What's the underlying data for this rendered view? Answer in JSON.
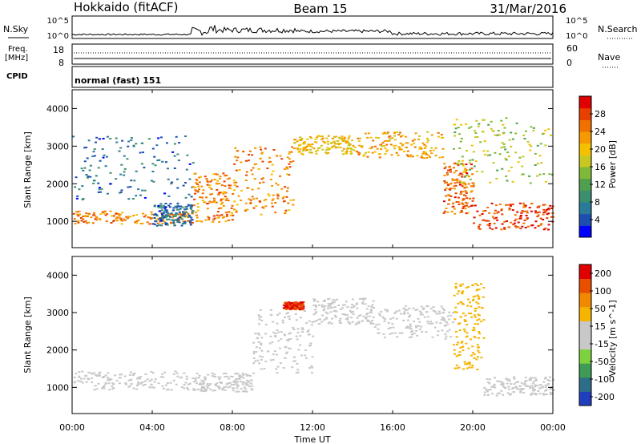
{
  "header": {
    "station": "Hokkaido (fitACF)",
    "beam": "Beam 15",
    "date": "31/Mar/2016"
  },
  "noise_panel": {
    "left_label": "N.Sky",
    "right_label": "N.Search",
    "left_ticks": [
      "10^5",
      "10^0"
    ],
    "right_ticks": [
      "10^5",
      "10^0"
    ]
  },
  "freq_panel": {
    "left_label_1": "Freq.",
    "left_label_2": "[MHz]",
    "left_ticks": [
      "18",
      "8"
    ],
    "right_label": "Nave",
    "right_ticks": [
      "60",
      "0"
    ]
  },
  "cpid_panel": {
    "label": "CPID",
    "mode": "normal (fast) 151"
  },
  "time_axis": {
    "label": "Time UT",
    "ticks": [
      "00:00",
      "04:00",
      "08:00",
      "12:00",
      "16:00",
      "20:00",
      "00:00"
    ]
  },
  "colors": {
    "power_scale": [
      "#0000ff",
      "#1d4fb0",
      "#2a7a99",
      "#3b8f6f",
      "#4f9f4f",
      "#7fb93a",
      "#c8c820",
      "#f5c000",
      "#f59a00",
      "#f07000",
      "#e84000",
      "#e00000"
    ],
    "velocity_scale": [
      "#1f3fbf",
      "#2e6e88",
      "#3e9a55",
      "#7dd13e",
      "#c8c8c8",
      "#c8c8c8",
      "#f5b400",
      "#f08800",
      "#e85000",
      "#e00000"
    ]
  },
  "chart_data": [
    {
      "type": "heatmap",
      "name": "power",
      "x_range_hours": [
        0,
        24
      ],
      "ylabel": "Slant Range [km]",
      "ylim": [
        300,
        4500
      ],
      "y_ticks": [
        1000,
        2000,
        3000,
        4000
      ],
      "colorbar": {
        "label": "Power [dB]",
        "range": [
          0,
          32
        ],
        "ticks": [
          4,
          8,
          12,
          16,
          20,
          24,
          28
        ]
      },
      "echo_bands": [
        {
          "t": [
            0.0,
            6.0
          ],
          "r": [
            950,
            1300
          ],
          "value": 24
        },
        {
          "t": [
            4.0,
            6.0
          ],
          "r": [
            900,
            1500
          ],
          "value": 6
        },
        {
          "t": [
            0.0,
            6.0
          ],
          "r": [
            1600,
            3300
          ],
          "value": 6
        },
        {
          "t": [
            6.0,
            8.0
          ],
          "r": [
            1000,
            2300
          ],
          "value": 24
        },
        {
          "t": [
            8.0,
            11.0
          ],
          "r": [
            1200,
            3000
          ],
          "value": 24
        },
        {
          "t": [
            11.0,
            14.0
          ],
          "r": [
            2800,
            3300
          ],
          "value": 20
        },
        {
          "t": [
            14.0,
            18.5
          ],
          "r": [
            2700,
            3400
          ],
          "value": 22
        },
        {
          "t": [
            18.5,
            20.0
          ],
          "r": [
            1200,
            2600
          ],
          "value": 26
        },
        {
          "t": [
            20.0,
            24.0
          ],
          "r": [
            800,
            1500
          ],
          "value": 28
        },
        {
          "t": [
            19.0,
            24.0
          ],
          "r": [
            2000,
            3800
          ],
          "value": 16
        }
      ]
    },
    {
      "type": "heatmap",
      "name": "velocity",
      "x_range_hours": [
        0,
        24
      ],
      "ylabel": "Slant Range [km]",
      "ylim": [
        300,
        4500
      ],
      "y_ticks": [
        1000,
        2000,
        3000,
        4000
      ],
      "colorbar": {
        "label": "Velocity [m s^-1]",
        "range": [
          -250,
          250
        ],
        "ticks": [
          200,
          100,
          50,
          15,
          -15,
          -50,
          -100,
          -200
        ]
      },
      "echo_bands": [
        {
          "t": [
            0.0,
            6.0
          ],
          "r": [
            950,
            1450
          ],
          "value": 0
        },
        {
          "t": [
            6.0,
            9.0
          ],
          "r": [
            900,
            1400
          ],
          "value": 0
        },
        {
          "t": [
            9.0,
            12.0
          ],
          "r": [
            1400,
            3100
          ],
          "value": 0
        },
        {
          "t": [
            12.0,
            15.0
          ],
          "r": [
            2700,
            3400
          ],
          "value": 0
        },
        {
          "t": [
            15.0,
            19.0
          ],
          "r": [
            2300,
            3200
          ],
          "value": 0
        },
        {
          "t": [
            19.0,
            20.5
          ],
          "r": [
            1500,
            3800
          ],
          "value": 60
        },
        {
          "t": [
            20.5,
            24.0
          ],
          "r": [
            800,
            1300
          ],
          "value": 0
        },
        {
          "t": [
            10.5,
            11.5
          ],
          "r": [
            3100,
            3300
          ],
          "value": 200
        }
      ]
    }
  ]
}
